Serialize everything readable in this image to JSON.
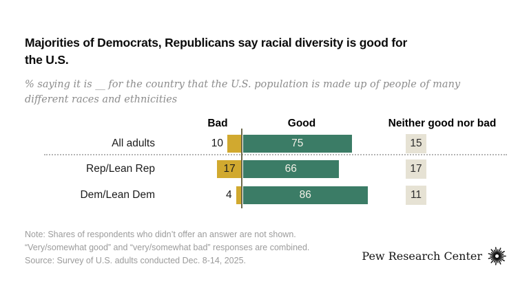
{
  "title": {
    "full": "Majorities of Democrats, Republicans say racial diversity is good for the U.S.",
    "lines": [
      "Majorities of Democrats, Republicans say racial diversity is good for",
      "the U.S."
    ]
  },
  "subtitle": {
    "full": "% saying it is __ for the country that the U.S. population is made up of people of many different races and ethnicities",
    "lines": [
      "% saying it is __ for the country that the U.S. population is made up of people of many",
      "different races and ethnicities"
    ]
  },
  "chart_data": {
    "type": "bar",
    "orientation": "horizontal-diverging",
    "unit": "percent",
    "column_headers": [
      "Bad",
      "Good",
      "Neither good nor bad"
    ],
    "categories": [
      "All adults",
      "Rep/Lean Rep",
      "Dem/Lean Dem"
    ],
    "series": [
      {
        "name": "Bad",
        "values": [
          10,
          17,
          4
        ],
        "color": "#d1a92f"
      },
      {
        "name": "Good",
        "values": [
          75,
          66,
          86
        ],
        "color": "#3b7c66"
      },
      {
        "name": "Neither good nor bad",
        "values": [
          15,
          17,
          11
        ],
        "color": "#e6e2d4"
      }
    ],
    "axis_color": "#6b6849",
    "xlim": [
      0,
      100
    ],
    "grid": false,
    "value_labels_shown": true
  },
  "notes": {
    "lines": [
      "Note: Shares of respondents who didn’t offer an answer are not shown.",
      "“Very/somewhat good” and “very/somewhat bad” responses are combined.",
      "Source: Survey of U.S. adults conducted Dec. 8-14, 2025."
    ]
  },
  "logo": {
    "text": "Pew Research Center"
  }
}
